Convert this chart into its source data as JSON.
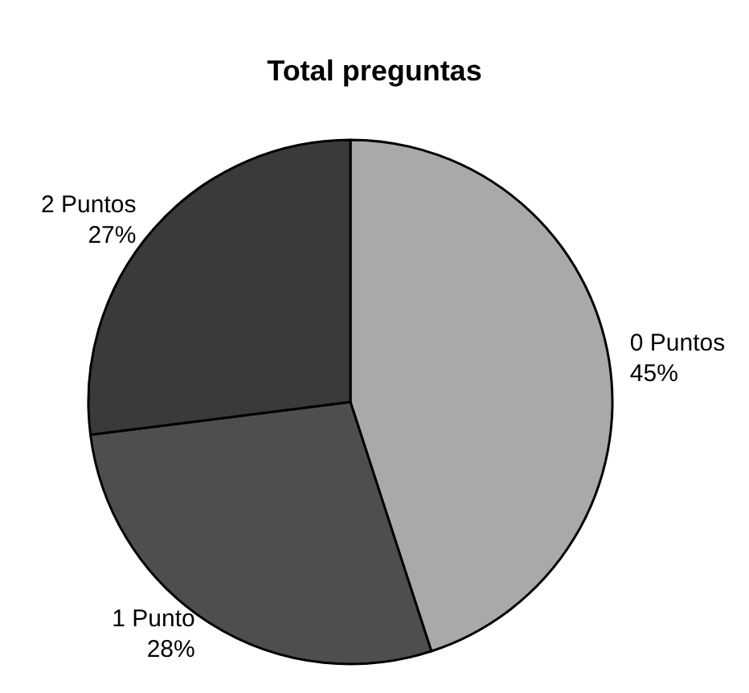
{
  "chart_data": {
    "type": "pie",
    "title": "Total preguntas",
    "categories": [
      "0 Puntos",
      "1 Punto",
      "2 Puntos"
    ],
    "values": [
      45,
      28,
      27
    ],
    "value_labels": [
      "45%",
      "28%",
      "27%"
    ],
    "colors": [
      "#a9a9a9",
      "#4e4e4e",
      "#3a3a3a"
    ],
    "legend": false
  }
}
